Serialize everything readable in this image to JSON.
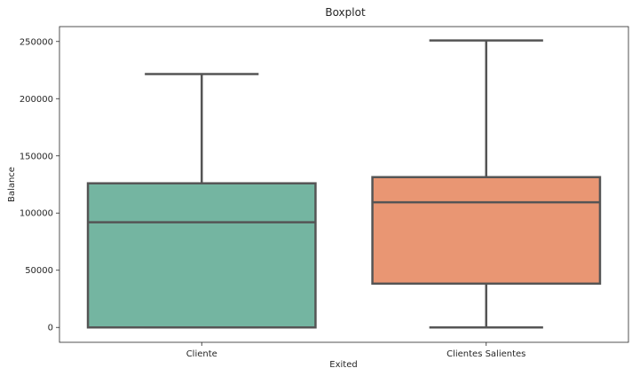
{
  "chart_data": {
    "type": "boxplot",
    "title": "Boxplot",
    "xlabel": "Exited",
    "ylabel": "Balance",
    "ylim": [
      -13000,
      263000
    ],
    "yticks": [
      0,
      50000,
      100000,
      150000,
      200000,
      250000
    ],
    "ytick_labels": [
      "0",
      "50000",
      "100000",
      "150000",
      "200000",
      "250000"
    ],
    "grid": false,
    "categories": [
      "Cliente",
      "Clientes Salientes"
    ],
    "boxes": [
      {
        "name": "Cliente",
        "whisker_low": 0,
        "q1": 0,
        "median": 92000,
        "q3": 126000,
        "whisker_high": 221500,
        "color": "#74b5a1"
      },
      {
        "name": "Clientes Salientes",
        "whisker_low": 0,
        "q1": 38300,
        "median": 109400,
        "q3": 131400,
        "whisker_high": 250900,
        "color": "#e99673"
      }
    ],
    "line_color": "#555555"
  }
}
